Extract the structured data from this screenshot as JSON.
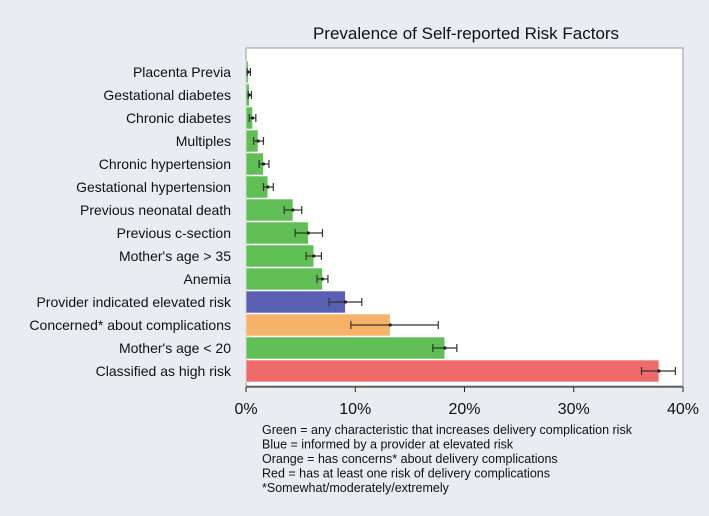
{
  "chart_data": {
    "type": "bar",
    "orientation": "horizontal",
    "title": "Prevalence of Self-reported Risk Factors",
    "xlim": [
      0,
      40
    ],
    "xticks": [
      0,
      10,
      20,
      30,
      40
    ],
    "xtick_labels": [
      "0%",
      "10%",
      "20%",
      "30%",
      "40%"
    ],
    "grid": false,
    "bars": [
      {
        "label": "Placenta Previa",
        "value": 0.2,
        "err_low": 0.1,
        "err_high": 0.4,
        "group": "green"
      },
      {
        "label": "Gestational diabetes",
        "value": 0.3,
        "err_low": 0.2,
        "err_high": 0.5,
        "group": "green"
      },
      {
        "label": "Chronic diabetes",
        "value": 0.6,
        "err_low": 0.3,
        "err_high": 0.9,
        "group": "green"
      },
      {
        "label": "Multiples",
        "value": 1.1,
        "err_low": 0.7,
        "err_high": 1.6,
        "group": "green"
      },
      {
        "label": "Chronic hypertension",
        "value": 1.6,
        "err_low": 1.2,
        "err_high": 2.1,
        "group": "green"
      },
      {
        "label": "Gestational hypertension",
        "value": 2.0,
        "err_low": 1.6,
        "err_high": 2.5,
        "group": "green"
      },
      {
        "label": "Previous neonatal death",
        "value": 4.3,
        "err_low": 3.5,
        "err_high": 5.1,
        "group": "green"
      },
      {
        "label": "Previous c-section",
        "value": 5.7,
        "err_low": 4.5,
        "err_high": 7.0,
        "group": "green"
      },
      {
        "label": "Mother's age > 35",
        "value": 6.2,
        "err_low": 5.5,
        "err_high": 6.9,
        "group": "green"
      },
      {
        "label": "Anemia",
        "value": 7.0,
        "err_low": 6.5,
        "err_high": 7.5,
        "group": "green"
      },
      {
        "label": "Provider indicated elevated risk",
        "value": 9.1,
        "err_low": 7.6,
        "err_high": 10.6,
        "group": "blue"
      },
      {
        "label": "Concerned* about complications",
        "value": 13.2,
        "err_low": 9.6,
        "err_high": 17.6,
        "group": "orange"
      },
      {
        "label": "Mother's age < 20",
        "value": 18.2,
        "err_low": 17.1,
        "err_high": 19.3,
        "group": "green"
      },
      {
        "label": "Classified as high risk",
        "value": 37.8,
        "err_low": 36.2,
        "err_high": 39.3,
        "group": "red"
      }
    ],
    "colors": {
      "green": "#5fbf54",
      "blue": "#5a5fb4",
      "orange": "#f7b26a",
      "red": "#ee6b6b"
    },
    "notes": [
      "Green = any characteristic that increases delivery complication risk",
      "Blue = informed by a provider at elevated risk",
      "Orange = has concerns* about delivery complications",
      "Red = has at least one risk of delivery complications",
      "*Somewhat/moderately/extremely"
    ]
  }
}
